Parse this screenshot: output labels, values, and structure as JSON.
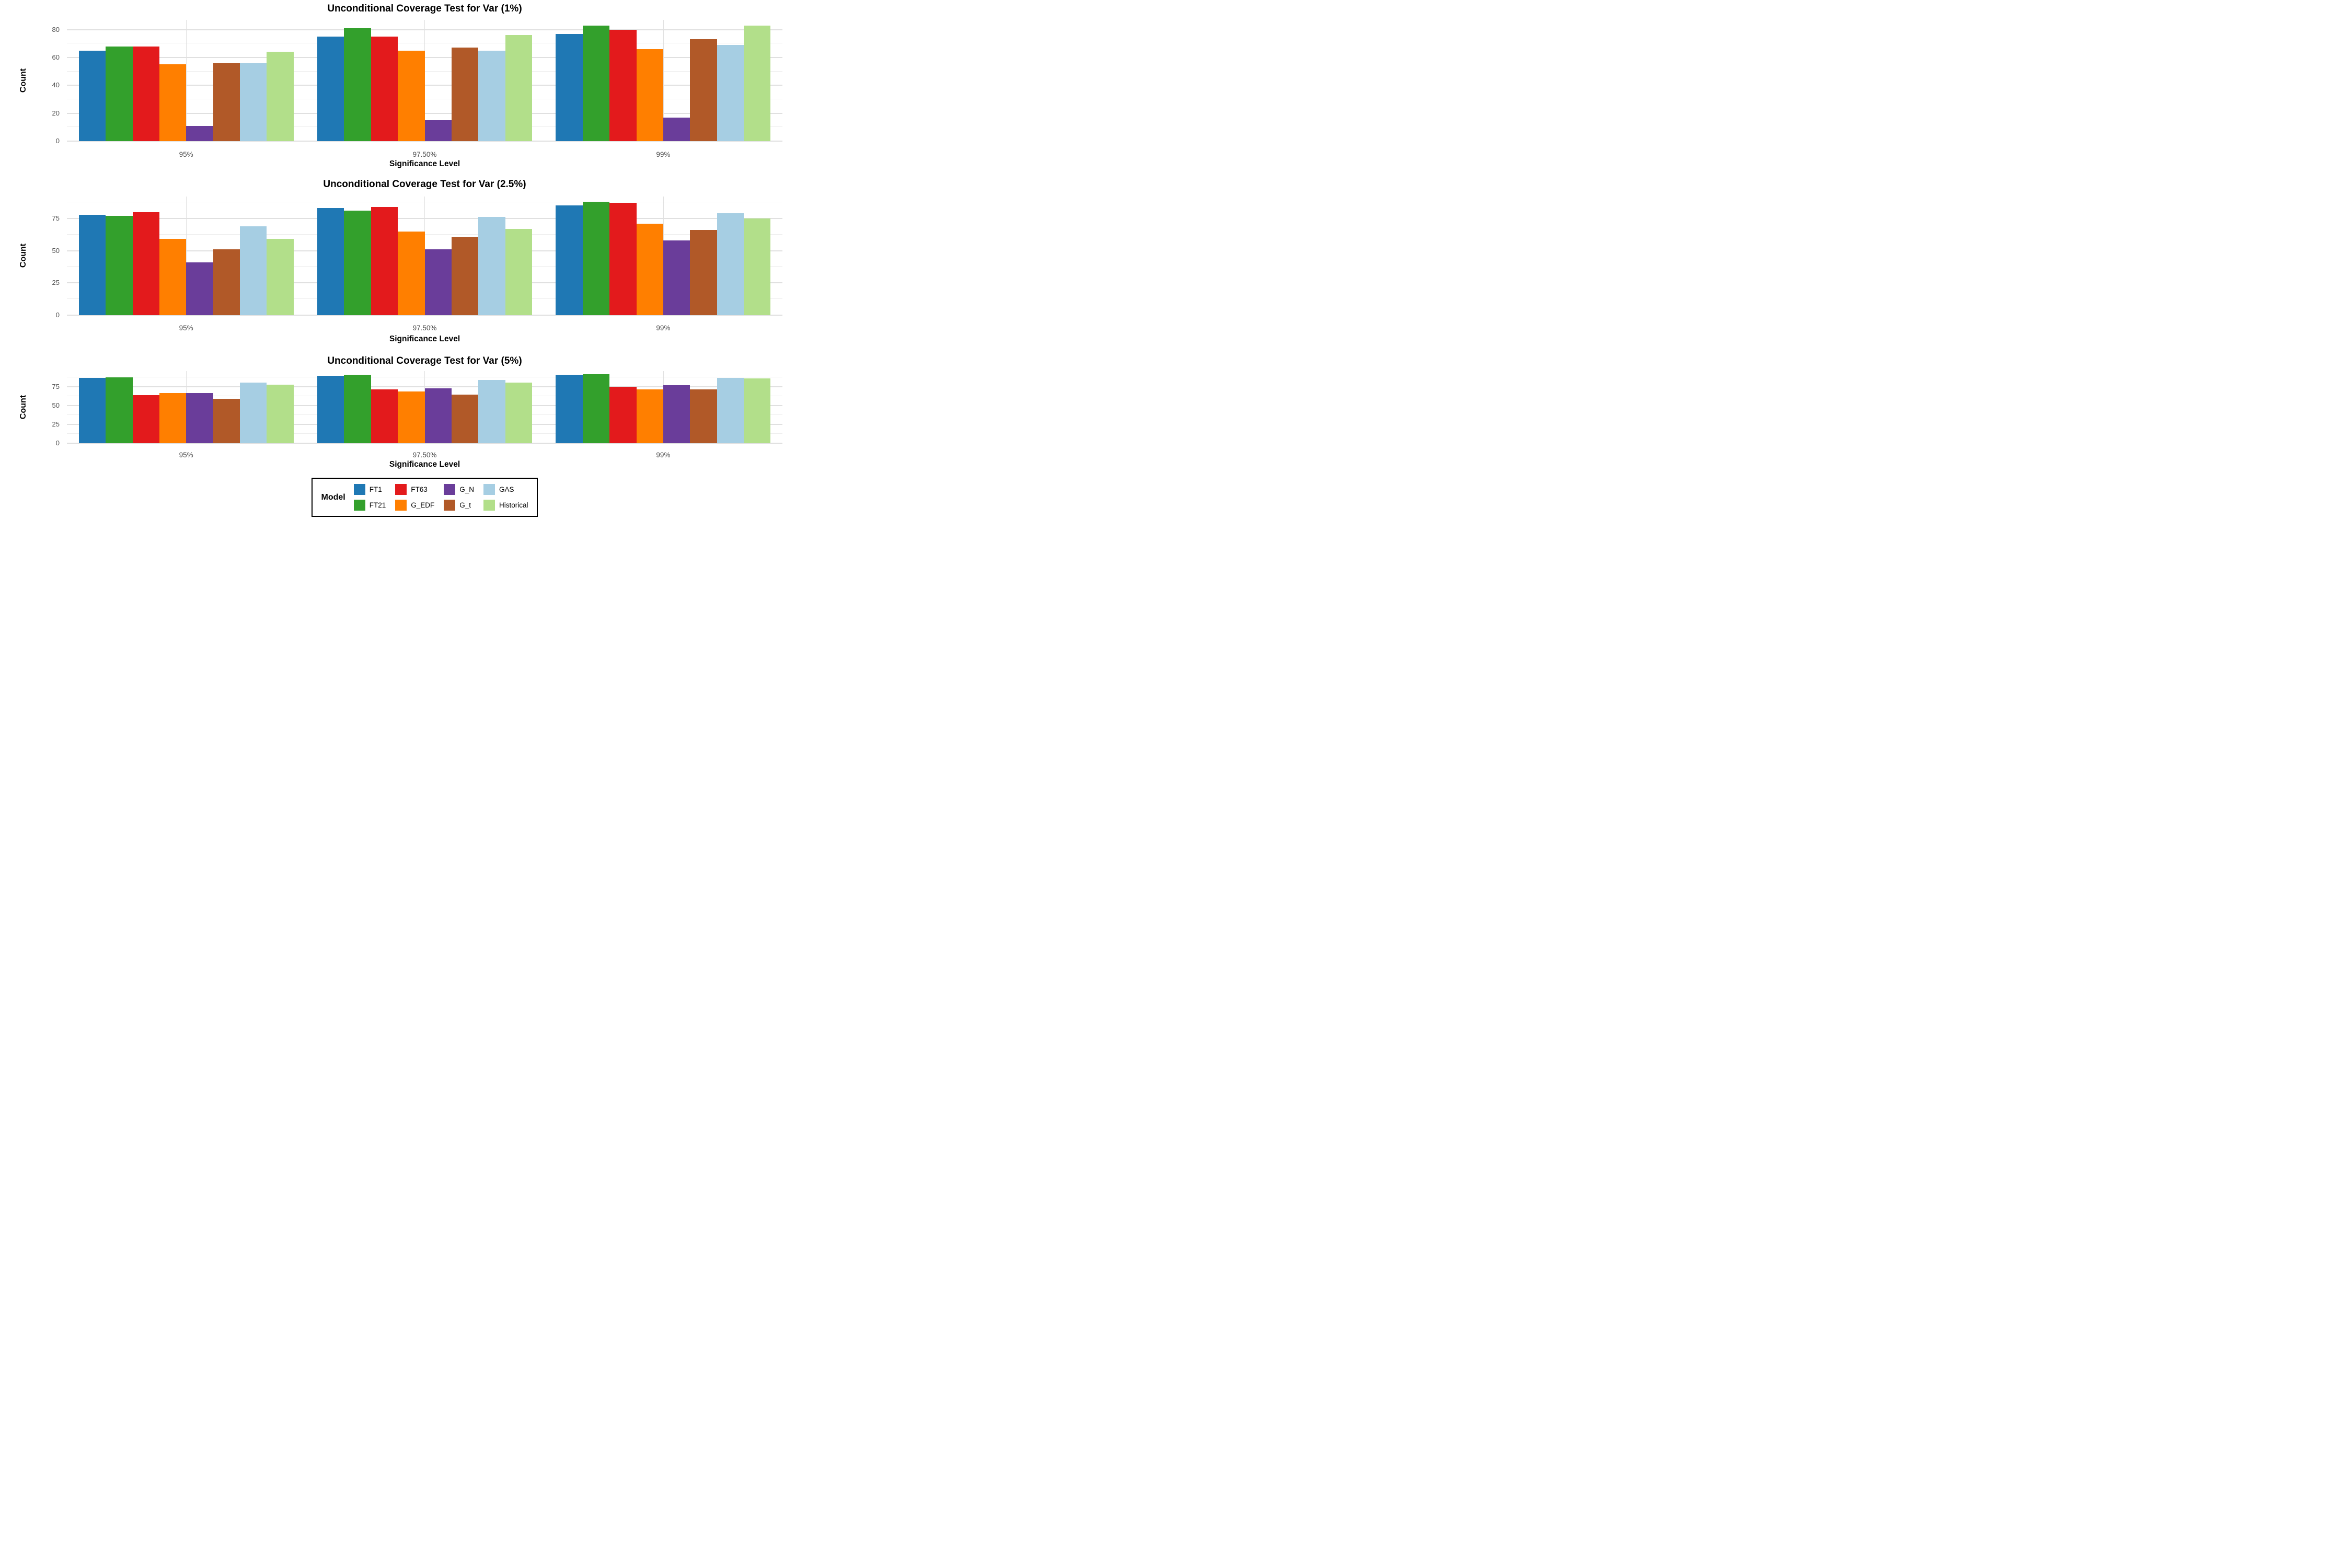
{
  "chart_data": [
    {
      "type": "bar",
      "title": "Unconditional Coverage Test for Var (1%)",
      "xlabel": "Significance Level",
      "ylabel": "Count",
      "categories": [
        "95%",
        "97.50%",
        "99%"
      ],
      "y_ticks": [
        0,
        20,
        40,
        60,
        80
      ],
      "y_minor_ticks": [
        10,
        30,
        50,
        70
      ],
      "ylim": [
        0,
        87
      ],
      "grid": true,
      "series": [
        {
          "name": "FT1",
          "color": "#1F78B4",
          "values": [
            65,
            75,
            77
          ]
        },
        {
          "name": "FT21",
          "color": "#33A02C",
          "values": [
            68,
            81,
            83
          ]
        },
        {
          "name": "FT63",
          "color": "#E31A1C",
          "values": [
            68,
            75,
            80
          ]
        },
        {
          "name": "G_EDF",
          "color": "#FF7F00",
          "values": [
            55,
            65,
            66
          ]
        },
        {
          "name": "G_N",
          "color": "#6A3D9A",
          "values": [
            11,
            15,
            17
          ]
        },
        {
          "name": "G_t",
          "color": "#B15928",
          "values": [
            56,
            67,
            73
          ]
        },
        {
          "name": "GAS",
          "color": "#A6CEE3",
          "values": [
            56,
            65,
            69
          ]
        },
        {
          "name": "Historical",
          "color": "#B2DF8A",
          "values": [
            64,
            76,
            83
          ]
        }
      ]
    },
    {
      "type": "bar",
      "title": "Unconditional Coverage Test for Var (2.5%)",
      "xlabel": "Significance Level",
      "ylabel": "Count",
      "categories": [
        "95%",
        "97.50%",
        "99%"
      ],
      "y_ticks": [
        0,
        25,
        50,
        75
      ],
      "y_minor_ticks": [
        12.5,
        37.5,
        62.5,
        87.5
      ],
      "ylim": [
        0,
        92
      ],
      "grid": true,
      "series": [
        {
          "name": "FT1",
          "color": "#1F78B4",
          "values": [
            78,
            83,
            85
          ]
        },
        {
          "name": "FT21",
          "color": "#33A02C",
          "values": [
            77,
            81,
            88
          ]
        },
        {
          "name": "FT63",
          "color": "#E31A1C",
          "values": [
            80,
            84,
            87
          ]
        },
        {
          "name": "G_EDF",
          "color": "#FF7F00",
          "values": [
            59,
            65,
            71
          ]
        },
        {
          "name": "G_N",
          "color": "#6A3D9A",
          "values": [
            41,
            51,
            58
          ]
        },
        {
          "name": "G_t",
          "color": "#B15928",
          "values": [
            51,
            61,
            66
          ]
        },
        {
          "name": "GAS",
          "color": "#A6CEE3",
          "values": [
            69,
            76,
            79
          ]
        },
        {
          "name": "Historical",
          "color": "#B2DF8A",
          "values": [
            59,
            67,
            75
          ]
        }
      ]
    },
    {
      "type": "bar",
      "title": "Unconditional Coverage Test for Var (5%)",
      "xlabel": "Significance Level",
      "ylabel": "Count",
      "categories": [
        "95%",
        "97.50%",
        "99%"
      ],
      "y_ticks": [
        0,
        25,
        50,
        75
      ],
      "y_minor_ticks": [
        12.5,
        37.5,
        62.5,
        87.5
      ],
      "ylim": [
        0,
        96
      ],
      "grid": true,
      "series": [
        {
          "name": "FT1",
          "color": "#1F78B4",
          "values": [
            87,
            90,
            91
          ]
        },
        {
          "name": "FT21",
          "color": "#33A02C",
          "values": [
            88,
            91,
            92
          ]
        },
        {
          "name": "FT63",
          "color": "#E31A1C",
          "values": [
            64,
            72,
            75
          ]
        },
        {
          "name": "G_EDF",
          "color": "#FF7F00",
          "values": [
            67,
            69,
            72
          ]
        },
        {
          "name": "G_N",
          "color": "#6A3D9A",
          "values": [
            67,
            73,
            77
          ]
        },
        {
          "name": "G_t",
          "color": "#B15928",
          "values": [
            59,
            65,
            72
          ]
        },
        {
          "name": "GAS",
          "color": "#A6CEE3",
          "values": [
            81,
            84,
            87
          ]
        },
        {
          "name": "Historical",
          "color": "#B2DF8A",
          "values": [
            78,
            81,
            86
          ]
        }
      ]
    }
  ],
  "legend": {
    "title": "Model",
    "position": "bottom-center",
    "border_color": "#000000",
    "items": [
      {
        "label": "FT1",
        "color": "#1F78B4"
      },
      {
        "label": "FT21",
        "color": "#33A02C"
      },
      {
        "label": "FT63",
        "color": "#E31A1C"
      },
      {
        "label": "G_EDF",
        "color": "#FF7F00"
      },
      {
        "label": "G_N",
        "color": "#6A3D9A"
      },
      {
        "label": "G_t",
        "color": "#B15928"
      },
      {
        "label": "GAS",
        "color": "#A6CEE3"
      },
      {
        "label": "Historical",
        "color": "#B2DF8A"
      }
    ]
  },
  "style_colors": {
    "grid_major": "#e0e0e0",
    "grid_minor": "#ededed",
    "tick_label": "#4d4d4d",
    "text": "#000000",
    "background": "#ffffff"
  }
}
